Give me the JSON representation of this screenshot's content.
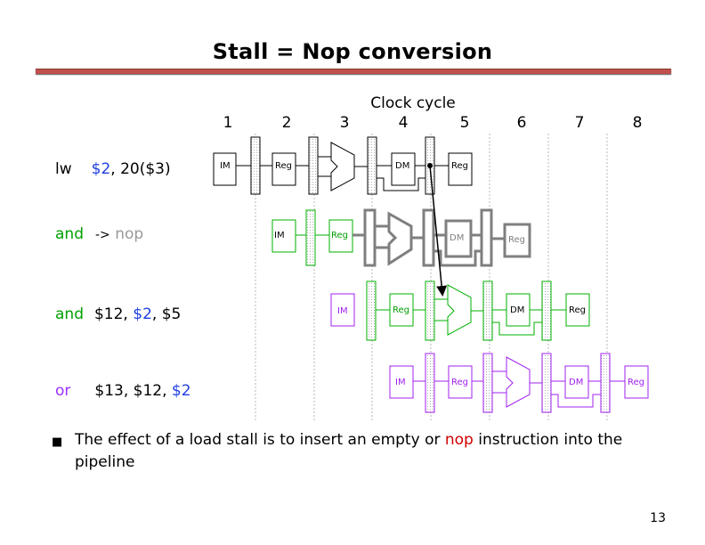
{
  "title": "Stall = Nop conversion",
  "clock_label": "Clock cycle",
  "cycles": [
    "1",
    "2",
    "3",
    "4",
    "5",
    "6",
    "7",
    "8"
  ],
  "instructions": [
    {
      "op": "lw",
      "arg1": "$2",
      "rest": ", 20($3)"
    },
    {
      "op": "and",
      "arrow": "->",
      "nop": "nop"
    },
    {
      "op": "and",
      "pre": "$12, ",
      "reg": "$2",
      "post": ", $5"
    },
    {
      "op": "or",
      "pre": "$13, $12, ",
      "reg": "$2"
    }
  ],
  "stage_labels": {
    "im": "IM",
    "reg": "Reg",
    "dm": "DM"
  },
  "colors": {
    "lw": "#000000",
    "nop": "#7f7f7f",
    "and": "#00b000",
    "or": "#a020f0",
    "title_rule": "#c0504d",
    "reg_highlight": "#1f3fe0",
    "nop_text": "#d00000"
  },
  "note": {
    "pre": "The effect of a load stall is to insert an empty or ",
    "highlight": "nop",
    "post": " instruction into the pipeline"
  },
  "page_number": "13"
}
